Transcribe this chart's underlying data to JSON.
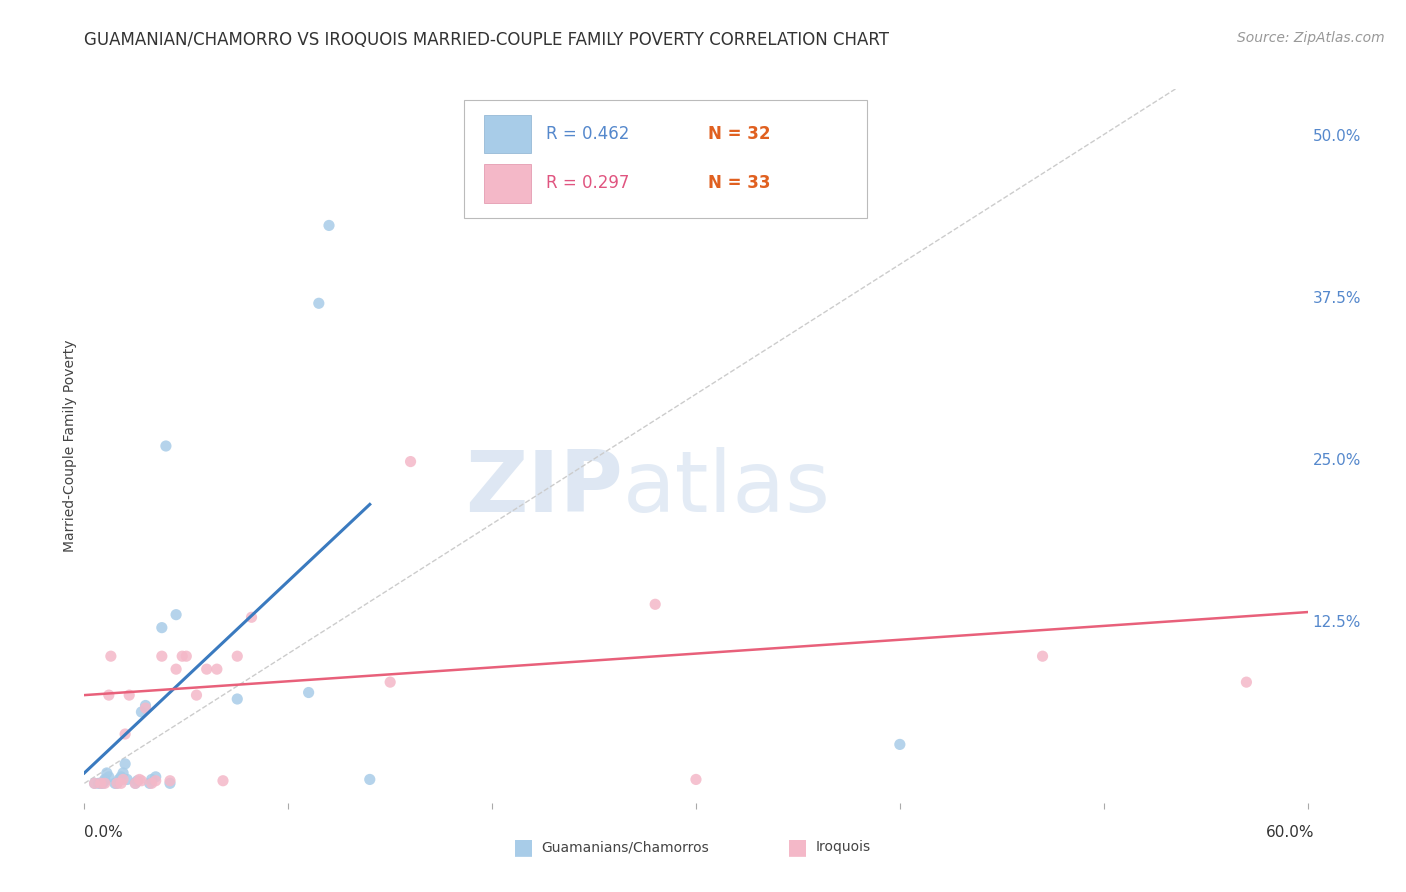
{
  "title": "GUAMANIAN/CHAMORRO VS IROQUOIS MARRIED-COUPLE FAMILY POVERTY CORRELATION CHART",
  "source": "Source: ZipAtlas.com",
  "ylabel": "Married-Couple Family Poverty",
  "xmin": 0.0,
  "xmax": 0.6,
  "ymin": -0.015,
  "ymax": 0.535,
  "yticks": [
    0.0,
    0.125,
    0.25,
    0.375,
    0.5
  ],
  "ytick_labels": [
    "",
    "12.5%",
    "25.0%",
    "37.5%",
    "50.0%"
  ],
  "xticks": [
    0.0,
    0.1,
    0.2,
    0.3,
    0.4,
    0.5,
    0.6
  ],
  "background_color": "#ffffff",
  "grid_color": "#cccccc",
  "blue_color": "#a8cce8",
  "pink_color": "#f4b8c8",
  "blue_line_color": "#3a7abf",
  "pink_line_color": "#e8607a",
  "diagonal_color": "#cccccc",
  "legend_blue_r": "0.462",
  "legend_blue_n": "32",
  "legend_pink_r": "0.297",
  "legend_pink_n": "33",
  "legend_blue_label": "Guamanians/Chamorros",
  "legend_pink_label": "Iroquois",
  "blue_scatter_x": [
    0.005,
    0.007,
    0.008,
    0.009,
    0.01,
    0.01,
    0.011,
    0.012,
    0.015,
    0.016,
    0.017,
    0.018,
    0.019,
    0.02,
    0.021,
    0.025,
    0.026,
    0.028,
    0.03,
    0.032,
    0.033,
    0.035,
    0.038,
    0.04,
    0.042,
    0.045,
    0.075,
    0.11,
    0.115,
    0.12,
    0.14,
    0.4
  ],
  "blue_scatter_y": [
    0.0,
    0.0,
    0.0,
    0.0,
    0.002,
    0.003,
    0.008,
    0.005,
    0.0,
    0.0,
    0.003,
    0.005,
    0.008,
    0.015,
    0.003,
    0.0,
    0.002,
    0.055,
    0.06,
    0.0,
    0.003,
    0.005,
    0.12,
    0.26,
    0.0,
    0.13,
    0.065,
    0.07,
    0.37,
    0.43,
    0.003,
    0.03
  ],
  "pink_scatter_x": [
    0.005,
    0.008,
    0.01,
    0.012,
    0.013,
    0.016,
    0.018,
    0.019,
    0.02,
    0.022,
    0.025,
    0.027,
    0.028,
    0.03,
    0.033,
    0.035,
    0.038,
    0.042,
    0.045,
    0.048,
    0.05,
    0.055,
    0.06,
    0.065,
    0.068,
    0.075,
    0.082,
    0.15,
    0.16,
    0.28,
    0.3,
    0.47,
    0.57
  ],
  "pink_scatter_y": [
    0.0,
    0.0,
    0.0,
    0.068,
    0.098,
    0.0,
    0.0,
    0.003,
    0.038,
    0.068,
    0.0,
    0.003,
    0.002,
    0.058,
    0.0,
    0.002,
    0.098,
    0.002,
    0.088,
    0.098,
    0.098,
    0.068,
    0.088,
    0.088,
    0.002,
    0.098,
    0.128,
    0.078,
    0.248,
    0.138,
    0.003,
    0.098,
    0.078
  ],
  "blue_line_x": [
    0.0,
    0.14
  ],
  "blue_line_y": [
    0.008,
    0.215
  ],
  "pink_line_x": [
    0.0,
    0.6
  ],
  "pink_line_y": [
    0.068,
    0.132
  ],
  "title_fontsize": 12,
  "label_fontsize": 10,
  "tick_fontsize": 11,
  "source_fontsize": 10,
  "marker_size": 65
}
